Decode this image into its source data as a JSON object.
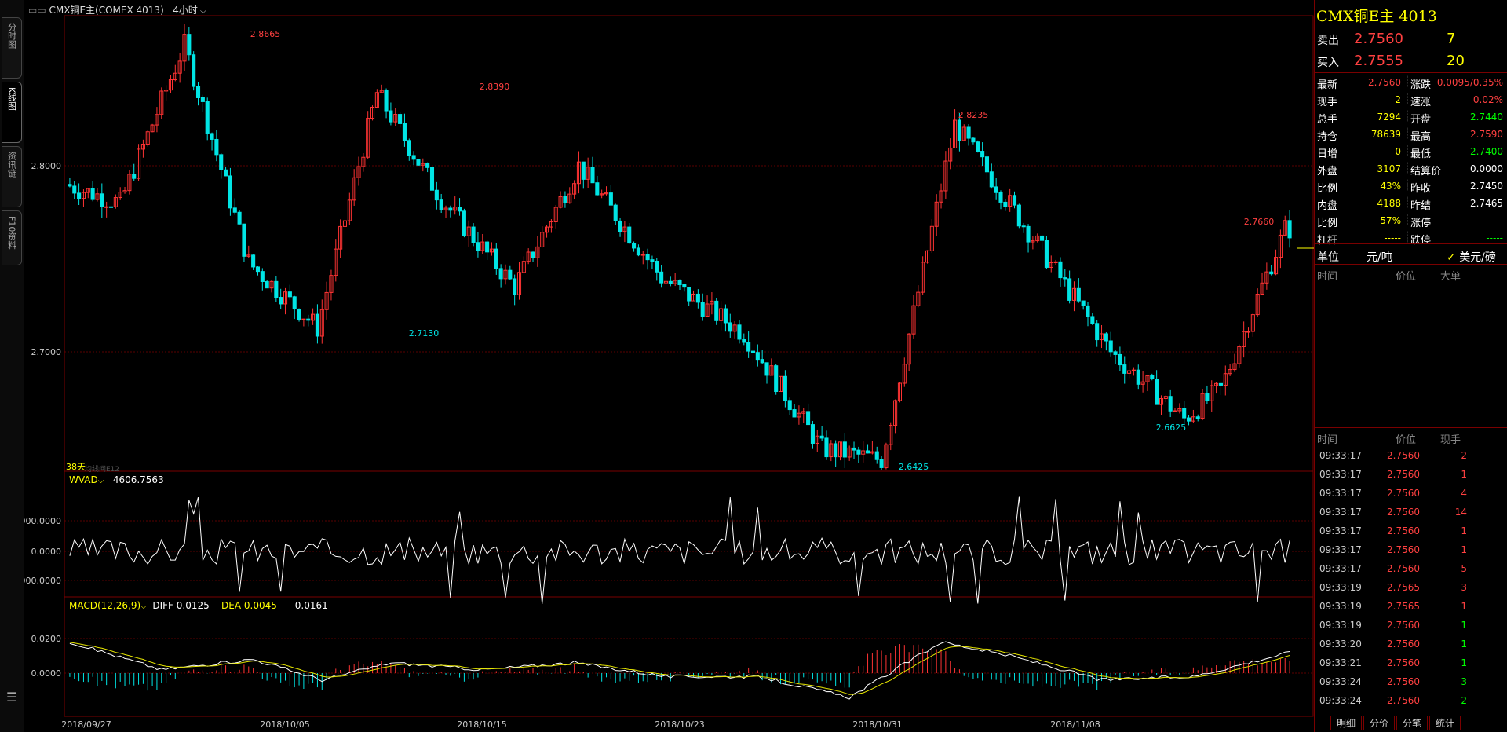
{
  "left_tabs": [
    {
      "label": "分时图"
    },
    {
      "label": "K线图"
    },
    {
      "label": "资讯链"
    },
    {
      "label": "F10资料"
    }
  ],
  "chart_header": {
    "symbol": "CMX铜E主(COMEX 4013)",
    "period": "4小时",
    "overlay_label": "38天",
    "overlay_label2": "均线间E12"
  },
  "main_chart": {
    "type": "candlestick",
    "y_ticks": [
      "2.8000",
      "2.7000"
    ],
    "annotations": [
      {
        "text": "2.8665",
        "color": "#ff4040"
      },
      {
        "text": "2.8390",
        "color": "#ff4040"
      },
      {
        "text": "2.7130",
        "color": "#00e5e5"
      },
      {
        "text": "2.8235",
        "color": "#ff4040"
      },
      {
        "text": "2.6425",
        "color": "#00e5e5"
      },
      {
        "text": "2.6625",
        "color": "#00e5e5"
      },
      {
        "text": "2.7660",
        "color": "#ff4040"
      }
    ],
    "x_labels": [
      "2018/09/27",
      "2018/10/05",
      "2018/10/15",
      "2018/10/23",
      "2018/10/31",
      "2018/11/08"
    ]
  },
  "wvad": {
    "name": "WVAD",
    "value": "4606.7563",
    "y_ticks": [
      "000.0000",
      "0.0000",
      "000.0000"
    ]
  },
  "macd": {
    "name": "MACD(12,26,9)",
    "diff_label": "DIFF 0.0125",
    "dea_label": "DEA 0.0045",
    "macd_value": "0.0161",
    "y_ticks": [
      "0.0200",
      "0.0000"
    ]
  },
  "quote": {
    "title": "CMX铜E主  4013",
    "sell_label": "卖出",
    "sell_price": "2.7560",
    "sell_qty": "7",
    "buy_label": "买入",
    "buy_price": "2.7555",
    "buy_qty": "20",
    "stats": [
      {
        "l1": "最新",
        "v1": "2.7560",
        "c1": "#ff4040",
        "l2": "涨跌",
        "v2": "0.0095/0.35%",
        "c2": "#ff4040"
      },
      {
        "l1": "现手",
        "v1": "2",
        "c1": "#ffff00",
        "l2": "速涨",
        "v2": "0.02%",
        "c2": "#ff4040"
      },
      {
        "l1": "总手",
        "v1": "7294",
        "c1": "#ffff00",
        "l2": "开盘",
        "v2": "2.7440",
        "c2": "#00ff00"
      },
      {
        "l1": "持仓",
        "v1": "78639",
        "c1": "#ffff00",
        "l2": "最高",
        "v2": "2.7590",
        "c2": "#ff4040"
      },
      {
        "l1": "日增",
        "v1": "0",
        "c1": "#ffff00",
        "l2": "最低",
        "v2": "2.7400",
        "c2": "#00ff00"
      },
      {
        "l1": "外盘",
        "v1": "3107",
        "c1": "#ffff00",
        "l2": "结算价",
        "v2": "0.0000",
        "c2": "#ffffff"
      },
      {
        "l1": "比例",
        "v1": "43%",
        "c1": "#ffff00",
        "l2": "昨收",
        "v2": "2.7450",
        "c2": "#ffffff"
      },
      {
        "l1": "内盘",
        "v1": "4188",
        "c1": "#ffff00",
        "l2": "昨结",
        "v2": "2.7465",
        "c2": "#ffffff"
      },
      {
        "l1": "比例",
        "v1": "57%",
        "c1": "#ffff00",
        "l2": "涨停",
        "v2": "-----",
        "c2": "#ff4040"
      },
      {
        "l1": "杠杆",
        "v1": "-----",
        "c1": "#ffff00",
        "l2": "跌停",
        "v2": "-----",
        "c2": "#00ff00"
      }
    ],
    "unit_label": "单位",
    "unit_value": "元/吨",
    "currency_option": "美元/磅",
    "big_header": {
      "time": "时间",
      "price": "价位",
      "size": "大单"
    },
    "trades_header": {
      "time": "时间",
      "price": "价位",
      "size": "现手"
    },
    "trades": [
      {
        "time": "09:33:17",
        "price": "2.7560",
        "size": "2",
        "sc": "#ff4040"
      },
      {
        "time": "09:33:17",
        "price": "2.7560",
        "size": "1",
        "sc": "#ff4040"
      },
      {
        "time": "09:33:17",
        "price": "2.7560",
        "size": "4",
        "sc": "#ff4040"
      },
      {
        "time": "09:33:17",
        "price": "2.7560",
        "size": "14",
        "sc": "#ff4040"
      },
      {
        "time": "09:33:17",
        "price": "2.7560",
        "size": "1",
        "sc": "#ff4040"
      },
      {
        "time": "09:33:17",
        "price": "2.7560",
        "size": "1",
        "sc": "#ff4040"
      },
      {
        "time": "09:33:17",
        "price": "2.7560",
        "size": "5",
        "sc": "#ff4040"
      },
      {
        "time": "09:33:19",
        "price": "2.7565",
        "size": "3",
        "sc": "#ff4040"
      },
      {
        "time": "09:33:19",
        "price": "2.7565",
        "size": "1",
        "sc": "#ff4040"
      },
      {
        "time": "09:33:19",
        "price": "2.7560",
        "size": "1",
        "sc": "#00ff00"
      },
      {
        "time": "09:33:20",
        "price": "2.7560",
        "size": "1",
        "sc": "#00ff00"
      },
      {
        "time": "09:33:21",
        "price": "2.7560",
        "size": "1",
        "sc": "#00ff00"
      },
      {
        "time": "09:33:24",
        "price": "2.7560",
        "size": "3",
        "sc": "#00ff00"
      },
      {
        "time": "09:33:24",
        "price": "2.7560",
        "size": "2",
        "sc": "#00ff00"
      }
    ],
    "bottom_tabs": [
      "明细",
      "分价",
      "分笔",
      "统计"
    ]
  },
  "colors": {
    "up": "#ff3333",
    "down": "#00e5e5",
    "grid": "#5a0000",
    "border": "#7a0000"
  }
}
